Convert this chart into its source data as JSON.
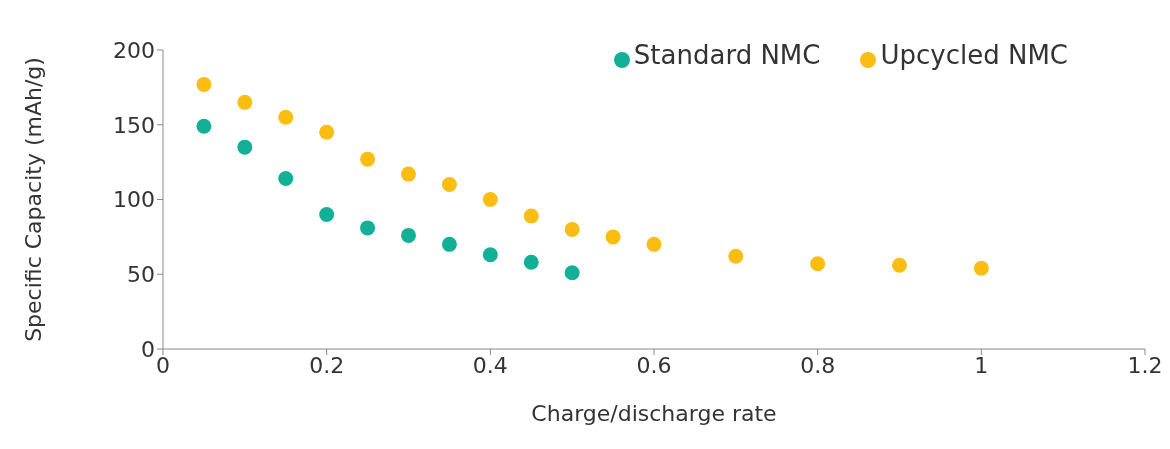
{
  "chart_data": {
    "type": "scatter",
    "xlabel": "Charge/discharge rate",
    "ylabel": "Specific Capacity (mAh/g)",
    "xlim": [
      0,
      1.2
    ],
    "xticks": [
      0,
      0.2,
      0.4,
      0.6,
      0.8,
      1,
      1.2
    ],
    "ylim": [
      0,
      200
    ],
    "yticks": [
      0,
      50,
      100,
      150,
      200
    ],
    "grid": false,
    "legend": "top right",
    "marker": "circle",
    "series": [
      {
        "name": "Standard NMC",
        "color": "#13b097",
        "x": [
          0.05,
          0.1,
          0.15,
          0.2,
          0.25,
          0.3,
          0.35,
          0.4,
          0.45,
          0.5
        ],
        "values": [
          149,
          135,
          114,
          90,
          81,
          76,
          70,
          63,
          58,
          51
        ]
      },
      {
        "name": "Upcycled NMC",
        "color": "#fbbd12",
        "x": [
          0.05,
          0.1,
          0.15,
          0.2,
          0.25,
          0.3,
          0.35,
          0.4,
          0.45,
          0.5,
          0.55,
          0.6,
          0.7,
          0.8,
          0.9,
          1
        ],
        "values": [
          177,
          165,
          155,
          145,
          127,
          117,
          110,
          100,
          89,
          80,
          75,
          70,
          62,
          57,
          56,
          54
        ]
      }
    ]
  }
}
